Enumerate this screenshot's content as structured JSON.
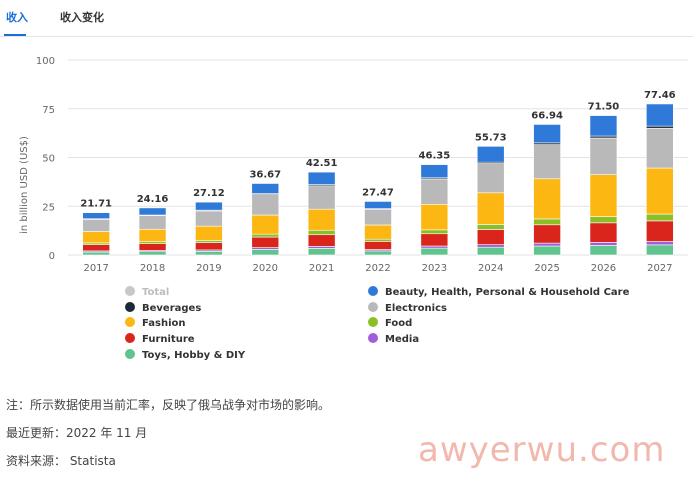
{
  "tabs": [
    {
      "label": "收入",
      "active": true
    },
    {
      "label": "收入变化",
      "active": false
    }
  ],
  "footer": {
    "note": "注：所示数据使用当前汇率，反映了俄乌战争对市场的影响。",
    "updated": "最近更新：2022 年 11 月",
    "source": "资料来源： Statista"
  },
  "watermark": "awyerwu.com",
  "chart_data": {
    "type": "bar",
    "stacked": true,
    "ylabel": "in billion USD (US$)",
    "ylim": [
      0,
      100
    ],
    "yticks": [
      0,
      25,
      50,
      75,
      100
    ],
    "grid": true,
    "legend_position": "bottom",
    "categories": [
      "2017",
      "2018",
      "2019",
      "2020",
      "2021",
      "2022",
      "2023",
      "2024",
      "2025",
      "2026",
      "2027"
    ],
    "totals": [
      "21.71",
      "24.16",
      "27.12",
      "36.67",
      "42.51",
      "27.47",
      "46.35",
      "55.73",
      "66.94",
      "71.50",
      "77.46"
    ],
    "legend": [
      {
        "name": "Total",
        "color": "#c8c8c8"
      },
      {
        "name": "Beauty, Health, Personal & Household Care",
        "color": "#2f7ad9"
      },
      {
        "name": "Beverages",
        "color": "#1b2a3a"
      },
      {
        "name": "Electronics",
        "color": "#b9b9b9"
      },
      {
        "name": "Fashion",
        "color": "#fdb713"
      },
      {
        "name": "Food",
        "color": "#8cbf26"
      },
      {
        "name": "Furniture",
        "color": "#d9251c"
      },
      {
        "name": "Media",
        "color": "#a25ed6"
      },
      {
        "name": "Toys, Hobby & DIY",
        "color": "#5fc48e"
      }
    ],
    "series": [
      {
        "name": "Toys, Hobby & DIY",
        "color": "#5fc48e",
        "values": [
          1.5,
          1.7,
          1.9,
          2.9,
          3.4,
          2.1,
          3.5,
          4.0,
          4.6,
          4.9,
          5.2
        ]
      },
      {
        "name": "Media",
        "color": "#a25ed6",
        "values": [
          0.6,
          0.6,
          0.7,
          0.9,
          1.0,
          0.7,
          1.1,
          1.3,
          1.5,
          1.6,
          1.7
        ]
      },
      {
        "name": "Furniture",
        "color": "#d9251c",
        "values": [
          3.2,
          3.5,
          3.8,
          5.4,
          6.0,
          4.2,
          6.3,
          7.8,
          9.4,
          10.0,
          10.6
        ]
      },
      {
        "name": "Food",
        "color": "#8cbf26",
        "values": [
          0.9,
          1.0,
          1.1,
          1.5,
          2.3,
          1.1,
          2.0,
          2.6,
          3.0,
          3.2,
          3.5
        ]
      },
      {
        "name": "Fashion",
        "color": "#fdb713",
        "values": [
          5.8,
          6.4,
          7.3,
          9.8,
          10.8,
          7.3,
          13.1,
          16.2,
          20.6,
          21.5,
          23.6
        ]
      },
      {
        "name": "Electronics",
        "color": "#b9b9b9",
        "values": [
          6.3,
          7.0,
          7.8,
          10.5,
          12.0,
          8.0,
          13.0,
          15.0,
          17.5,
          18.8,
          20.4
        ]
      },
      {
        "name": "Beverages",
        "color": "#1b2a3a",
        "values": [
          0.3,
          0.3,
          0.4,
          0.5,
          0.6,
          0.4,
          0.6,
          0.7,
          0.9,
          1.0,
          1.1
        ]
      },
      {
        "name": "Beauty, Health, Personal & Household Care",
        "color": "#2f7ad9",
        "values": [
          3.1,
          3.66,
          4.12,
          5.17,
          6.41,
          3.67,
          6.75,
          8.13,
          9.44,
          10.5,
          11.36
        ]
      }
    ]
  }
}
